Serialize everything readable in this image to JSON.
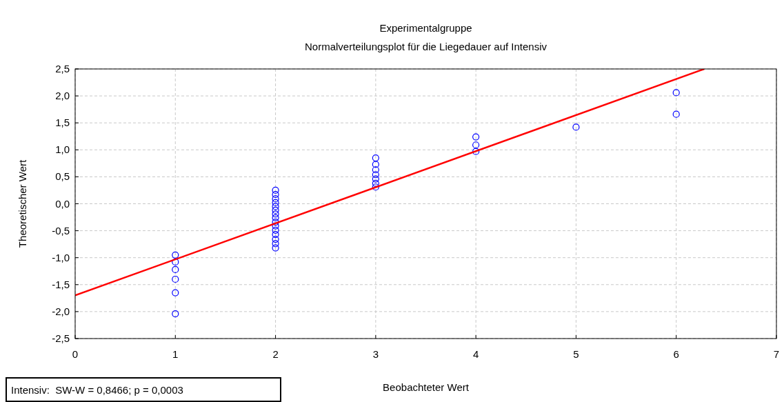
{
  "chart_data": {
    "type": "scatter",
    "title": "Experimentalgruppe",
    "subtitle": "Normalverteilungsplot für die Liegedauer auf Intensiv",
    "xlabel": "Beobachteter Wert",
    "ylabel": "Theoretischer Wert",
    "annotations": [
      "Intensiv:  SW-W = 0,8466; p = 0,0003"
    ],
    "xlim": [
      0,
      7
    ],
    "xticks": [
      0,
      1,
      2,
      3,
      4,
      5,
      6,
      7
    ],
    "ylim": [
      -2.5,
      2.5
    ],
    "yticks": [
      {
        "value": -2.5,
        "label": "-2,5"
      },
      {
        "value": -2,
        "label": "-2,0"
      },
      {
        "value": -1.5,
        "label": "-1,5"
      },
      {
        "value": -1,
        "label": "-1,0"
      },
      {
        "value": -0.5,
        "label": "-0,5"
      },
      {
        "value": 0,
        "label": "0,0"
      },
      {
        "value": 0.5,
        "label": "0,5"
      },
      {
        "value": 1,
        "label": "1,0"
      },
      {
        "value": 1.5,
        "label": "1,5"
      },
      {
        "value": 2,
        "label": "2,0"
      },
      {
        "value": 2.5,
        "label": "2,5"
      }
    ],
    "grid": true,
    "series": [
      {
        "marker": "circle",
        "color": "#0000ff",
        "x": [
          1,
          1,
          1,
          1,
          1,
          1,
          2,
          2,
          2,
          2,
          2,
          2,
          2,
          2,
          2,
          2,
          2,
          2,
          2,
          2,
          2,
          3,
          3,
          3,
          3,
          3,
          3,
          3,
          4,
          4,
          4,
          5,
          6,
          6
        ],
        "values": [
          -0.95,
          -1.08,
          -1.22,
          -1.4,
          -1.65,
          -2.04,
          0.25,
          0.17,
          0.09,
          0.02,
          -0.05,
          -0.12,
          -0.19,
          -0.26,
          -0.34,
          -0.41,
          -0.49,
          -0.57,
          -0.66,
          -0.74,
          -0.82,
          0.85,
          0.73,
          0.63,
          0.54,
          0.46,
          0.38,
          0.31,
          1.24,
          1.09,
          0.97,
          1.42,
          2.06,
          1.66
        ]
      },
      {
        "type": "line",
        "color": "#ff0000",
        "x": [
          0,
          6.28
        ],
        "values": [
          -1.7,
          2.5
        ]
      }
    ]
  }
}
